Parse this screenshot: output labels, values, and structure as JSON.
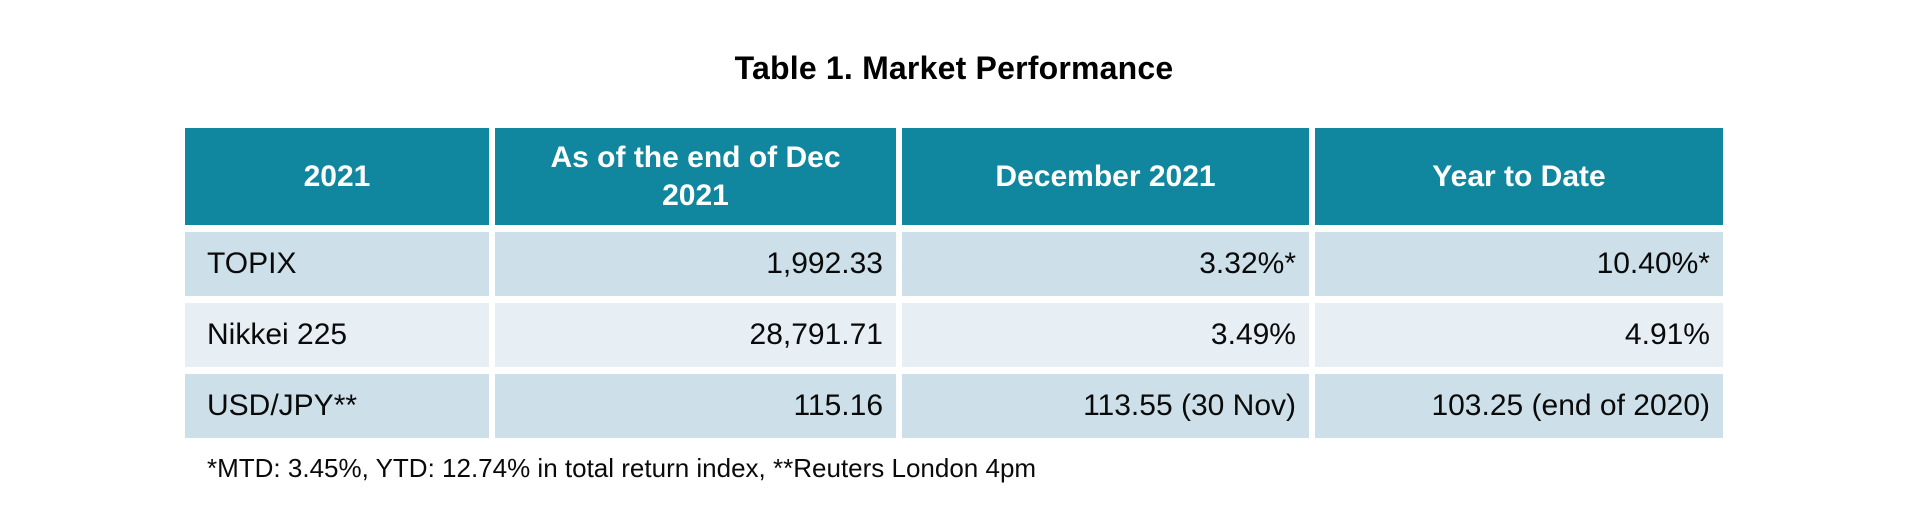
{
  "title": "Table 1. Market Performance",
  "table": {
    "columns": [
      "2021",
      "As of the end of Dec 2021",
      "December 2021",
      "Year to Date"
    ],
    "rows": [
      {
        "cells": [
          "TOPIX",
          "1,992.33",
          "3.32%*",
          "10.40%*"
        ]
      },
      {
        "cells": [
          "Nikkei 225",
          "28,791.71",
          "3.49%",
          "4.91%"
        ]
      },
      {
        "cells": [
          "USD/JPY**",
          "115.16",
          "113.55 (30 Nov)",
          "103.25 (end of 2020)"
        ]
      }
    ]
  },
  "footnote": "*MTD: 3.45%, YTD: 12.74% in total return index, **Reuters London 4pm",
  "chart_data": {
    "type": "table",
    "title": "Table 1. Market Performance",
    "columns": [
      "2021",
      "As of the end of Dec 2021",
      "December 2021",
      "Year to Date"
    ],
    "rows": [
      [
        "TOPIX",
        "1,992.33",
        "3.32%*",
        "10.40%*"
      ],
      [
        "Nikkei 225",
        "28,791.71",
        "3.49%",
        "4.91%"
      ],
      [
        "USD/JPY**",
        "115.16",
        "113.55 (30 Nov)",
        "103.25 (end of 2020)"
      ]
    ],
    "notes": "*MTD: 3.45%, YTD: 12.74% in total return index, **Reuters London 4pm"
  },
  "colors": {
    "header_bg": "#10869f",
    "header_text": "#ffffff",
    "row_shaded_bg": "#cde0e9",
    "row_light_bg": "#e7eef4",
    "body_text": "#0a0a0a",
    "background": "#ffffff"
  }
}
